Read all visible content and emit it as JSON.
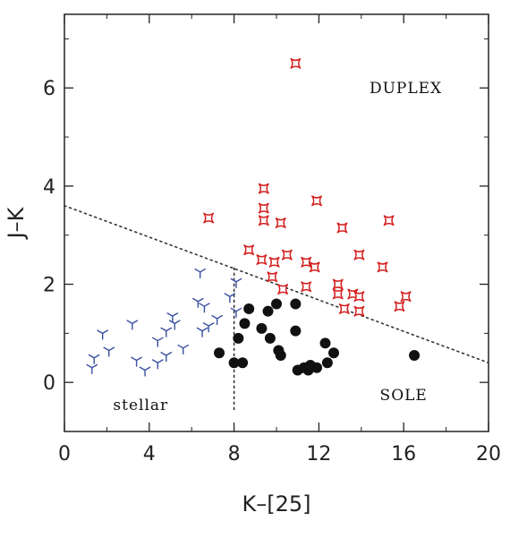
{
  "chart_data": {
    "type": "scatter",
    "xlabel": "K–[25]",
    "ylabel": "J–K",
    "xlim": [
      0,
      20
    ],
    "ylim": [
      -1,
      7.5
    ],
    "xticks": [
      0,
      4,
      8,
      12,
      16,
      20
    ],
    "yticks": [
      0,
      2,
      4,
      6
    ],
    "grid": false,
    "annotations": [
      {
        "text": "DUPLEX",
        "x": 16.1,
        "y": 6.0
      },
      {
        "text": "SOLE",
        "x": 16.0,
        "y": -0.25
      },
      {
        "text": "stellar",
        "x": 3.6,
        "y": -0.45
      }
    ],
    "lines": [
      {
        "style": "dotted",
        "x": [
          0,
          20
        ],
        "y": [
          3.6,
          0.4
        ]
      },
      {
        "style": "dotted",
        "x": [
          8.0,
          8.0
        ],
        "y": [
          -0.55,
          2.4
        ]
      }
    ],
    "series": [
      {
        "marker": "open-star",
        "color": "#d42020",
        "points": [
          [
            10.9,
            6.5
          ],
          [
            6.8,
            3.35
          ],
          [
            9.4,
            3.95
          ],
          [
            9.4,
            3.55
          ],
          [
            9.4,
            3.3
          ],
          [
            10.2,
            3.25
          ],
          [
            11.9,
            3.7
          ],
          [
            13.1,
            3.15
          ],
          [
            15.3,
            3.3
          ],
          [
            8.7,
            2.7
          ],
          [
            9.3,
            2.5
          ],
          [
            9.9,
            2.45
          ],
          [
            10.5,
            2.6
          ],
          [
            9.8,
            2.15
          ],
          [
            10.3,
            1.9
          ],
          [
            11.4,
            2.45
          ],
          [
            11.8,
            2.35
          ],
          [
            13.9,
            2.6
          ],
          [
            15.0,
            2.35
          ],
          [
            11.4,
            1.95
          ],
          [
            12.9,
            2.0
          ],
          [
            12.9,
            1.8
          ],
          [
            13.6,
            1.8
          ],
          [
            13.9,
            1.75
          ],
          [
            13.2,
            1.5
          ],
          [
            13.9,
            1.45
          ],
          [
            16.1,
            1.75
          ],
          [
            15.8,
            1.55
          ]
        ]
      },
      {
        "marker": "tripod",
        "color": "#3a4fa0",
        "points": [
          [
            1.4,
            0.5
          ],
          [
            1.3,
            0.3
          ],
          [
            1.8,
            1.0
          ],
          [
            2.1,
            0.65
          ],
          [
            3.2,
            1.2
          ],
          [
            3.4,
            0.45
          ],
          [
            3.8,
            0.25
          ],
          [
            4.4,
            0.85
          ],
          [
            4.4,
            0.4
          ],
          [
            4.8,
            1.05
          ],
          [
            4.8,
            0.55
          ],
          [
            5.1,
            1.35
          ],
          [
            5.2,
            1.2
          ],
          [
            5.6,
            0.7
          ],
          [
            6.4,
            2.25
          ],
          [
            6.3,
            1.65
          ],
          [
            6.6,
            1.55
          ],
          [
            6.5,
            1.05
          ],
          [
            6.8,
            1.15
          ],
          [
            7.2,
            1.3
          ],
          [
            7.8,
            1.75
          ],
          [
            8.1,
            2.05
          ],
          [
            8.1,
            1.45
          ]
        ]
      },
      {
        "marker": "filled-circle",
        "color": "#111111",
        "points": [
          [
            7.3,
            0.6
          ],
          [
            8.0,
            0.4
          ],
          [
            8.4,
            0.4
          ],
          [
            8.2,
            0.9
          ],
          [
            8.5,
            1.2
          ],
          [
            8.7,
            1.5
          ],
          [
            9.3,
            1.1
          ],
          [
            9.6,
            1.45
          ],
          [
            9.7,
            0.9
          ],
          [
            10.0,
            1.6
          ],
          [
            10.1,
            0.65
          ],
          [
            10.2,
            0.55
          ],
          [
            10.9,
            1.6
          ],
          [
            10.9,
            1.05
          ],
          [
            11.0,
            0.25
          ],
          [
            11.3,
            0.3
          ],
          [
            11.5,
            0.25
          ],
          [
            11.6,
            0.35
          ],
          [
            11.9,
            0.3
          ],
          [
            12.3,
            0.8
          ],
          [
            12.4,
            0.4
          ],
          [
            12.7,
            0.6
          ],
          [
            16.5,
            0.55
          ]
        ]
      }
    ]
  }
}
